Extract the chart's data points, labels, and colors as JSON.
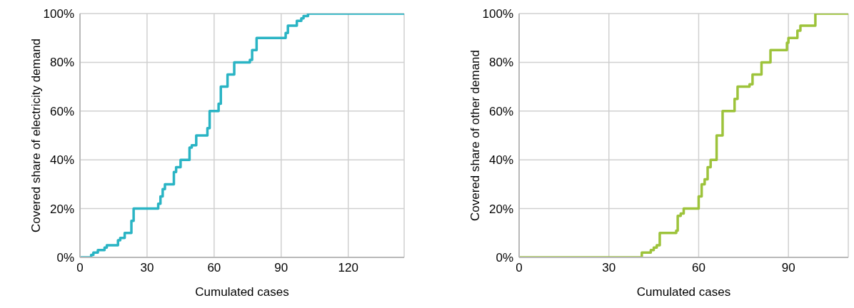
{
  "chart_data": [
    {
      "type": "step",
      "xlabel": "Cumulated cases",
      "ylabel": "Covered share of electricity demand",
      "xlim": [
        0,
        145
      ],
      "xticks": [
        0,
        30,
        60,
        90,
        120
      ],
      "ylim": [
        0,
        100
      ],
      "yticks": [
        {
          "value": 0,
          "label": "0%"
        },
        {
          "value": 20,
          "label": "20%"
        },
        {
          "value": 40,
          "label": "40%"
        },
        {
          "value": 60,
          "label": "60%"
        },
        {
          "value": 80,
          "label": "80%"
        },
        {
          "value": 100,
          "label": "100%"
        }
      ],
      "grid": true,
      "legend": false,
      "marker": "none",
      "line_style": "solid",
      "series": [
        {
          "color": "#2ab4c4",
          "x": [
            0,
            5,
            6,
            8,
            11,
            12,
            17,
            18,
            20,
            23,
            24,
            35,
            36,
            37,
            38,
            42,
            43,
            45,
            49,
            50,
            52,
            57,
            58,
            62,
            63,
            66,
            69,
            76,
            77,
            79,
            92,
            93,
            97,
            99,
            100,
            102,
            145
          ],
          "values": [
            0,
            1,
            2,
            3,
            4,
            5,
            7,
            8,
            10,
            15,
            20,
            22,
            25,
            28,
            30,
            35,
            37,
            40,
            45,
            46,
            50,
            53,
            60,
            63,
            70,
            75,
            80,
            81,
            85,
            90,
            92,
            95,
            97,
            98,
            99,
            100,
            100
          ]
        }
      ]
    },
    {
      "type": "step",
      "xlabel": "Cumulated cases",
      "ylabel": "Covered share of other demand",
      "xlim": [
        0,
        110
      ],
      "xticks": [
        0,
        30,
        60,
        90
      ],
      "ylim": [
        0,
        100
      ],
      "yticks": [
        {
          "value": 0,
          "label": "0%"
        },
        {
          "value": 20,
          "label": "20%"
        },
        {
          "value": 40,
          "label": "40%"
        },
        {
          "value": 60,
          "label": "60%"
        },
        {
          "value": 80,
          "label": "80%"
        },
        {
          "value": 100,
          "label": "100%"
        }
      ],
      "grid": true,
      "legend": false,
      "marker": "none",
      "line_style": "solid",
      "series": [
        {
          "color": "#9dc33b",
          "x": [
            0,
            41,
            44,
            45,
            46,
            47,
            52.5,
            53,
            54,
            55,
            60,
            61,
            62,
            63,
            64,
            66,
            68,
            72,
            73,
            77,
            78,
            81,
            84,
            89.5,
            90,
            93,
            94,
            99,
            110
          ],
          "values": [
            0,
            2,
            3,
            4,
            5,
            10,
            11,
            17,
            18,
            20,
            25,
            30,
            32,
            37,
            40,
            50,
            60,
            65,
            70,
            71,
            75,
            80,
            85,
            88,
            90,
            93,
            95,
            100,
            100
          ]
        }
      ]
    }
  ]
}
